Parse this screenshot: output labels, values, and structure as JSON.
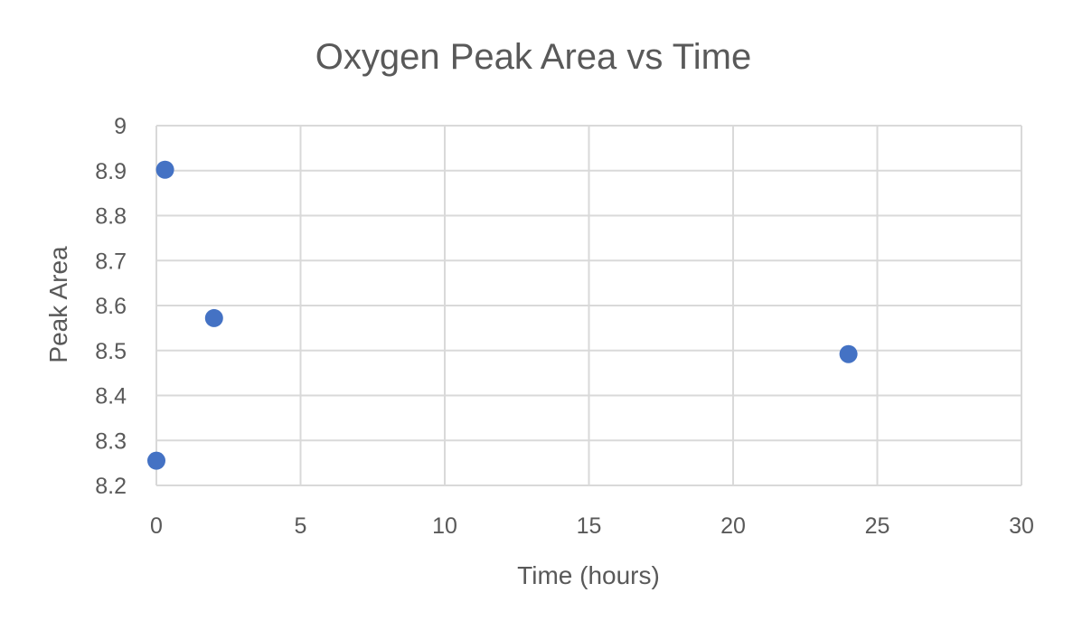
{
  "chart_data": {
    "type": "scatter",
    "title": "Oxygen Peak Area vs Time",
    "xlabel": "Time (hours)",
    "ylabel": "Peak Area",
    "xlim": [
      0,
      30
    ],
    "ylim": [
      8.2,
      9
    ],
    "xticks": [
      "0",
      "5",
      "10",
      "15",
      "20",
      "25",
      "30"
    ],
    "yticks": [
      "8.2",
      "8.3",
      "8.4",
      "8.5",
      "8.6",
      "8.7",
      "8.8",
      "8.9",
      "9"
    ],
    "grid": true,
    "legend": "none",
    "series": [
      {
        "color": "#4472c4",
        "points": [
          {
            "x": 0,
            "y": 8.255
          },
          {
            "x": 0.3,
            "y": 8.902
          },
          {
            "x": 2,
            "y": 8.572
          },
          {
            "x": 24,
            "y": 8.492
          }
        ]
      }
    ]
  }
}
